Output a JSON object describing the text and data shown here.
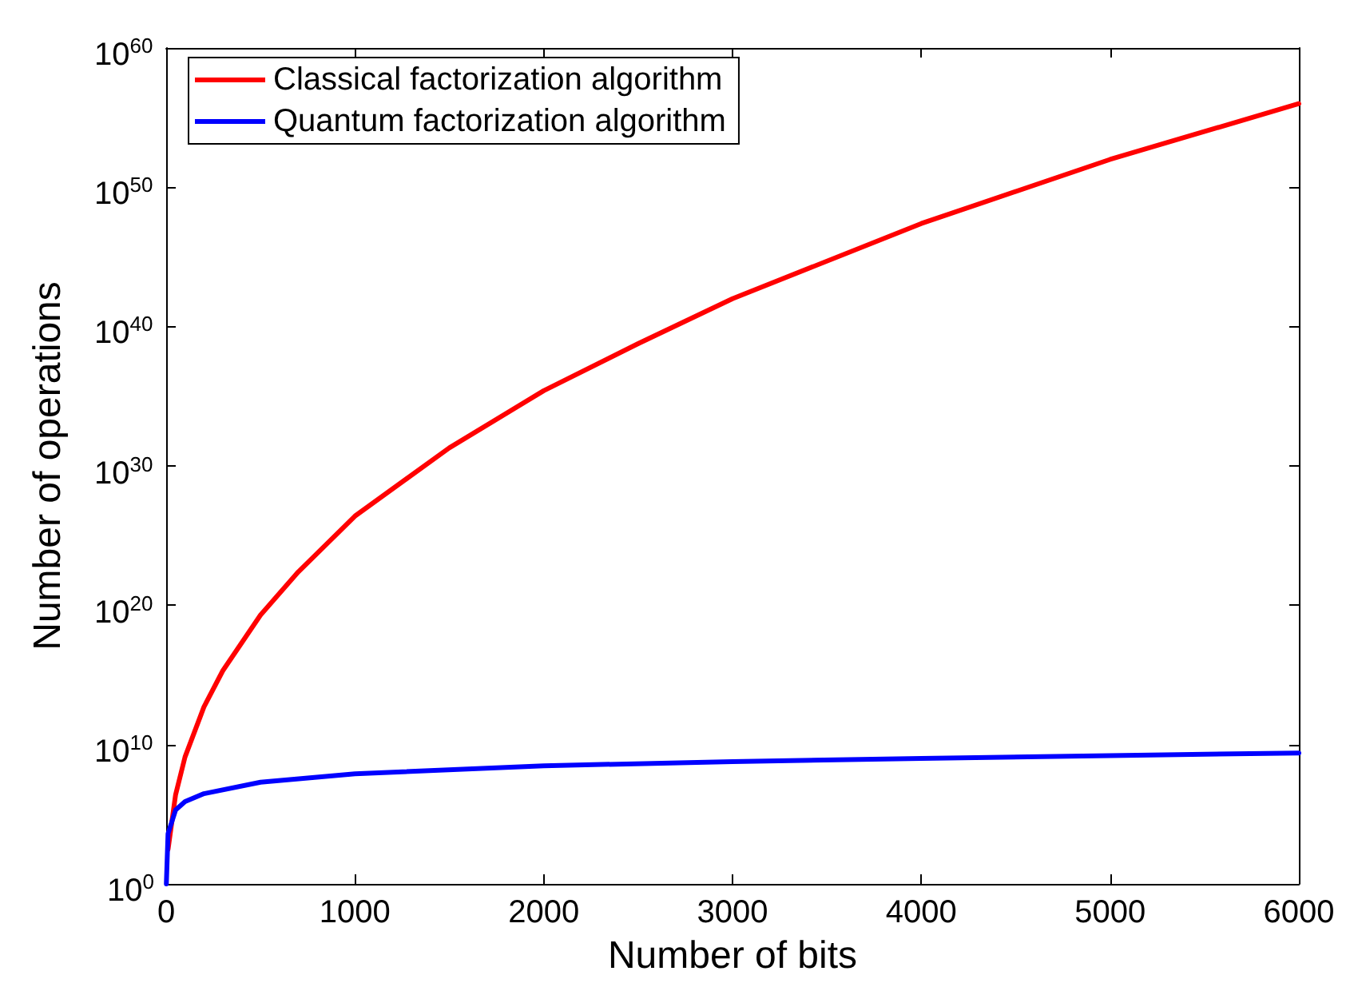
{
  "chart_data": {
    "type": "line",
    "xlabel": "Number of bits",
    "ylabel": "Number of operations",
    "log": "y",
    "grid": false,
    "legend": "top left",
    "marker": "none",
    "line_style": "solid",
    "xlim": [
      0,
      6000
    ],
    "xticks": [
      0,
      1000,
      2000,
      3000,
      4000,
      5000,
      6000
    ],
    "ylim": [
      1,
      1e+60
    ],
    "yticks": [
      {
        "value": 1,
        "label": "10$^{0}$"
      },
      {
        "value": 10000000000.0,
        "label": "10$^{10}$"
      },
      {
        "value": 1e+20,
        "label": "10$^{20}$"
      },
      {
        "value": 1e+30,
        "label": "10$^{30}$"
      },
      {
        "value": 1e+40,
        "label": "10$^{40}$"
      },
      {
        "value": 1e+50,
        "label": "10$^{50}$"
      },
      {
        "value": 1e+60,
        "label": "10$^{60}$"
      }
    ],
    "series": [
      {
        "name": "Classical factorization algorithm",
        "color": "#ff0000",
        "x": [
          10,
          50,
          100,
          200,
          300,
          500,
          700,
          1000,
          1500,
          2000,
          2500,
          3000,
          4000,
          5000,
          6000
        ],
        "values": [
          300.0,
          2500000.0,
          1300000000.0,
          5000000000000.0,
          2000000000000000.0,
          2e+19,
          2.5e+22,
          2.5e+26,
          2e+31,
          2.5e+35,
          6e+38,
          1e+42,
          2.5e+47,
          1e+52,
          1e+56
        ]
      },
      {
        "name": "Quantum factorization algorithm",
        "color": "#0000ff",
        "x": [
          1,
          10,
          50,
          100,
          200,
          500,
          1000,
          2000,
          3000,
          4000,
          5000,
          6000
        ],
        "values": [
          1,
          4000.0,
          200000.0,
          800000.0,
          3000000.0,
          20000000.0,
          80000000.0,
          300000000.0,
          600000000.0,
          1000000000.0,
          1600000000.0,
          2500000000.0
        ]
      }
    ]
  }
}
